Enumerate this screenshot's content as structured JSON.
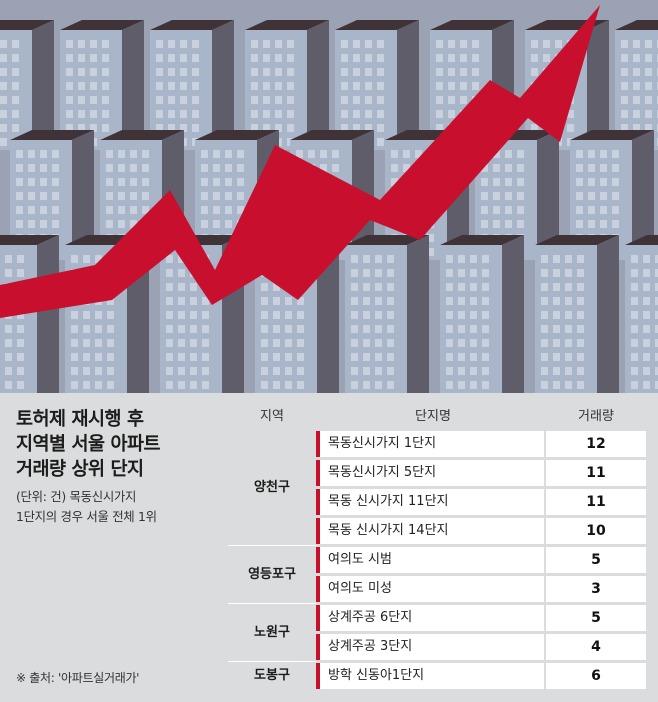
{
  "caption": {
    "title": "토허제 재시행 후\n지역별 서울 아파트\n거래량 상위 단지",
    "subtitle": "(단위: 건) 목동신시가지\n1단지의 경우 서울 전체 1위",
    "source": "※ 출처: '아파트실거래가'"
  },
  "colors": {
    "accent": "#c8102e",
    "panel": "#dbdcdd",
    "sky": "#9aa2b4",
    "building_front": "#a9b6c9",
    "building_side": "#5f5d6a",
    "roof": "#3f3338"
  },
  "chart_data": {
    "type": "table",
    "columns": [
      "지역",
      "단지명",
      "거래량"
    ],
    "groups": [
      {
        "region": "양천구",
        "rows": [
          {
            "name": "목동신시가지 1단지",
            "value": 12
          },
          {
            "name": "목동신시가지 5단지",
            "value": 11
          },
          {
            "name": "목동 신시가지 11단지",
            "value": 11
          },
          {
            "name": "목동 신시가지 14단지",
            "value": 10
          }
        ]
      },
      {
        "region": "영등포구",
        "rows": [
          {
            "name": "여의도 시범",
            "value": 5
          },
          {
            "name": "여의도 미성",
            "value": 3
          }
        ]
      },
      {
        "region": "노원구",
        "rows": [
          {
            "name": "상계주공 6단지",
            "value": 5
          },
          {
            "name": "상계주공 3단지",
            "value": 4
          }
        ]
      },
      {
        "region": "도봉구",
        "rows": [
          {
            "name": "방학 신동아1단지",
            "value": 6
          }
        ]
      }
    ]
  }
}
